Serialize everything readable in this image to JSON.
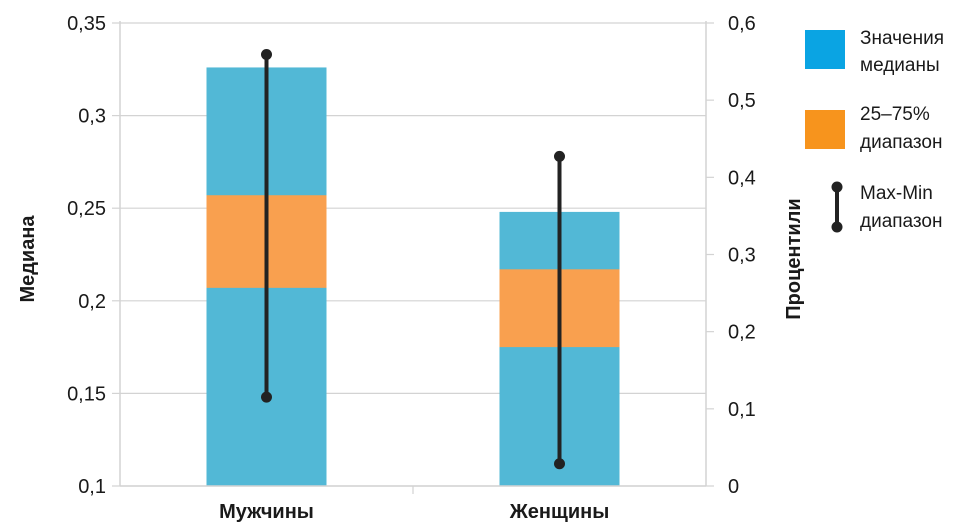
{
  "chart_data": {
    "type": "box",
    "categories": [
      "Мужчины",
      "Женщины"
    ],
    "ylabel": "Медиана",
    "ylabel_right": "Процентили",
    "ylim": [
      0.1,
      0.35
    ],
    "y_ticks": [
      "0,1",
      "0,15",
      "0,2",
      "0,25",
      "0,3",
      "0,35"
    ],
    "y2lim": [
      0,
      0.6
    ],
    "y2_ticks": [
      "0",
      "0,1",
      "0,2",
      "0,3",
      "0,4",
      "0,5",
      "0,6"
    ],
    "grid": true,
    "legend_position": "right",
    "legend": {
      "median": [
        "Значения",
        "медианы"
      ],
      "iqr": [
        "25–75%",
        "диапазон"
      ],
      "range": [
        "Max-Min",
        "диапазон"
      ]
    },
    "series": [
      {
        "name": "Значения медианы",
        "axis": "left",
        "values": [
          0.326,
          0.248
        ],
        "color": "#52b8d6"
      },
      {
        "name": "25–75% диапазон",
        "axis": "left",
        "ranges": [
          [
            0.207,
            0.257
          ],
          [
            0.175,
            0.217
          ]
        ],
        "color": "#f9a04f"
      },
      {
        "name": "Max-Min диапазон",
        "axis": "left",
        "ranges": [
          [
            0.148,
            0.333
          ],
          [
            0.112,
            0.278
          ]
        ],
        "color": "#222222"
      }
    ],
    "colors": {
      "legend_median": "#0aa4e3",
      "legend_iqr": "#f7941d",
      "grid": "#d3d3d3",
      "text": "#1a1a1a"
    }
  }
}
